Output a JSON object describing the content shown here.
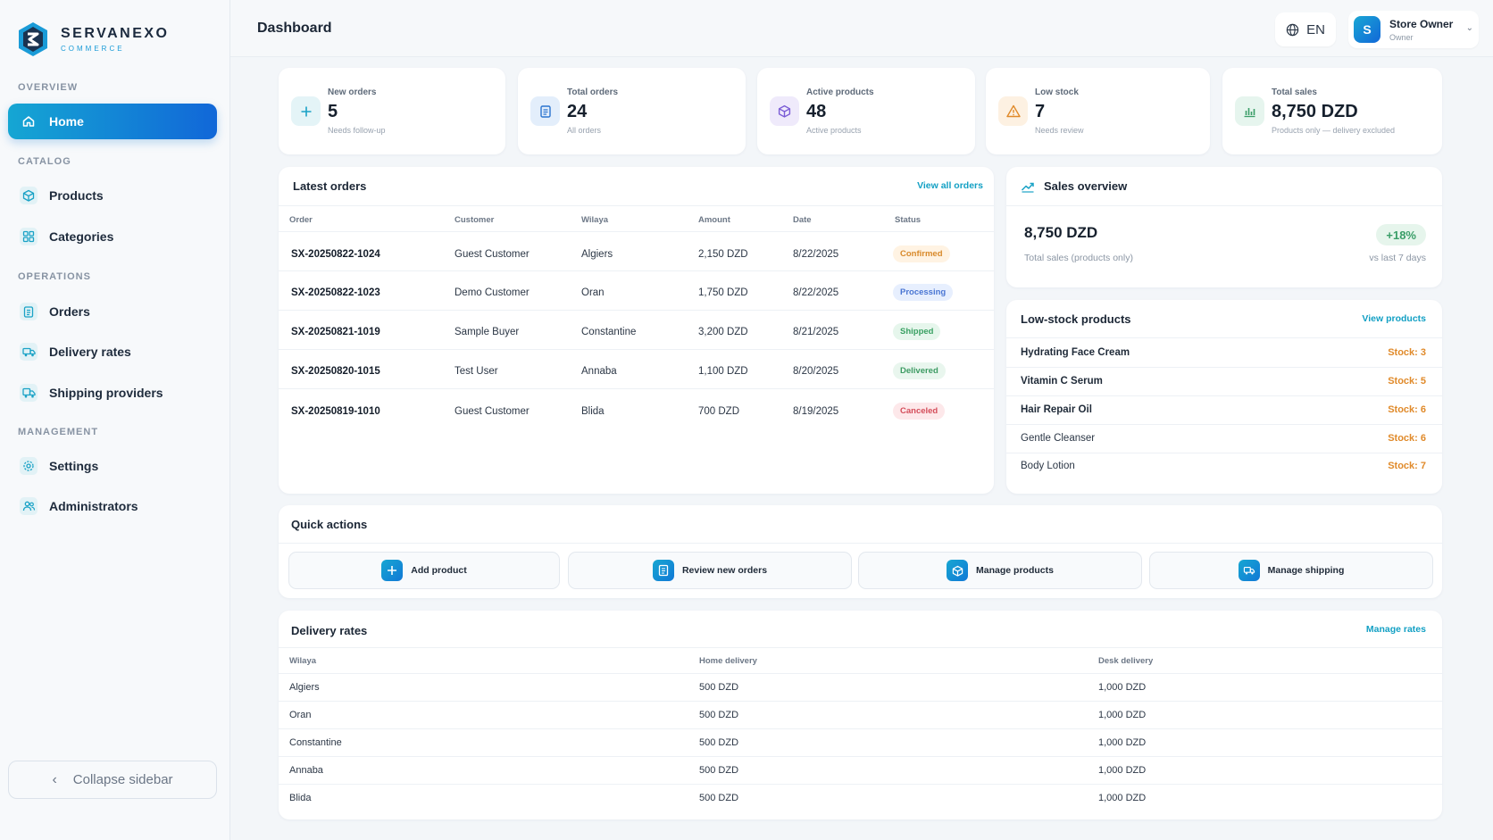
{
  "brand": {
    "name": "SERVANEXO",
    "sub": "COMMERCE"
  },
  "sidebar": {
    "sections": {
      "overview": "OVERVIEW",
      "catalog": "CATALOG",
      "operations": "OPERATIONS",
      "management": "MANAGEMENT"
    },
    "items": [
      {
        "label": "Home",
        "icon": "home-icon"
      },
      {
        "label": "Products",
        "icon": "box-icon"
      },
      {
        "label": "Categories",
        "icon": "grid-icon"
      },
      {
        "label": "Orders",
        "icon": "clipboard-icon"
      },
      {
        "label": "Delivery rates",
        "icon": "truck-icon"
      },
      {
        "label": "Shipping providers",
        "icon": "truck-box-icon"
      },
      {
        "label": "Settings",
        "icon": "gear-icon"
      },
      {
        "label": "Administrators",
        "icon": "users-icon"
      }
    ],
    "collapse_label": "Collapse sidebar"
  },
  "header": {
    "title": "Dashboard",
    "language": "EN",
    "user_name": "Store Owner",
    "user_role": "Owner",
    "avatar_letter": "S"
  },
  "stats": [
    {
      "label": "New orders",
      "value": "5",
      "sub": "Needs follow-up",
      "icon": "plus-icon"
    },
    {
      "label": "Total orders",
      "value": "24",
      "sub": "All orders",
      "icon": "clipboard-icon"
    },
    {
      "label": "Active products",
      "value": "48",
      "sub": "Active products",
      "icon": "cube-icon"
    },
    {
      "label": "Low stock",
      "value": "7",
      "sub": "Needs review",
      "icon": "warning-icon"
    },
    {
      "label": "Total sales",
      "value": "8,750 DZD",
      "sub": "Products only — delivery excluded",
      "icon": "bar-chart-icon"
    }
  ],
  "latest_orders": {
    "title": "Latest orders",
    "link": "View all orders",
    "columns": [
      "Order",
      "Customer",
      "Wilaya",
      "Amount",
      "Date",
      "Status"
    ],
    "rows": [
      {
        "order": "SX-20250822-1024",
        "customer": "Guest Customer",
        "wilaya": "Algiers",
        "amount": "2,150 DZD",
        "date": "8/22/2025",
        "status": "Confirmed"
      },
      {
        "order": "SX-20250822-1023",
        "customer": "Demo Customer",
        "wilaya": "Oran",
        "amount": "1,750 DZD",
        "date": "8/22/2025",
        "status": "Processing"
      },
      {
        "order": "SX-20250821-1019",
        "customer": "Sample Buyer",
        "wilaya": "Constantine",
        "amount": "3,200 DZD",
        "date": "8/21/2025",
        "status": "Shipped"
      },
      {
        "order": "SX-20250820-1015",
        "customer": "Test User",
        "wilaya": "Annaba",
        "amount": "1,100 DZD",
        "date": "8/20/2025",
        "status": "Delivered"
      },
      {
        "order": "SX-20250819-1010",
        "customer": "Guest Customer",
        "wilaya": "Blida",
        "amount": "700 DZD",
        "date": "8/19/2025",
        "status": "Canceled"
      }
    ]
  },
  "sales_overview": {
    "title": "Sales overview",
    "value": "8,750 DZD",
    "caption": "Total sales (products only)",
    "change": "+18%",
    "change_caption": "vs last 7 days"
  },
  "low_stock": {
    "title": "Low-stock products",
    "link": "View products",
    "items": [
      {
        "name": "Hydrating Face Cream",
        "stock": "Stock: 3"
      },
      {
        "name": "Vitamin C Serum",
        "stock": "Stock: 5"
      },
      {
        "name": "Hair Repair Oil",
        "stock": "Stock: 6"
      },
      {
        "name": "Gentle Cleanser",
        "stock": "Stock: 6"
      },
      {
        "name": "Body Lotion",
        "stock": "Stock: 7"
      }
    ]
  },
  "quick_actions": {
    "title": "Quick actions",
    "items": [
      {
        "label": "Add product",
        "icon": "plus-icon"
      },
      {
        "label": "Review new orders",
        "icon": "clipboard-icon"
      },
      {
        "label": "Manage products",
        "icon": "cube-icon"
      },
      {
        "label": "Manage shipping",
        "icon": "truck-icon"
      }
    ]
  },
  "delivery_rates": {
    "title": "Delivery rates",
    "link": "Manage rates",
    "columns": [
      "Wilaya",
      "Home delivery",
      "Desk delivery"
    ],
    "rows": [
      {
        "wilaya": "Algiers",
        "home": "500 DZD",
        "desk": "1,000 DZD"
      },
      {
        "wilaya": "Oran",
        "home": "500 DZD",
        "desk": "1,000 DZD"
      },
      {
        "wilaya": "Constantine",
        "home": "500 DZD",
        "desk": "1,000 DZD"
      },
      {
        "wilaya": "Annaba",
        "home": "500 DZD",
        "desk": "1,000 DZD"
      },
      {
        "wilaya": "Blida",
        "home": "500 DZD",
        "desk": "1,000 DZD"
      }
    ]
  },
  "colors": {
    "accent": "#13a0c4",
    "primary_gradient_start": "#15a6d3",
    "primary_gradient_end": "#1167d8",
    "warning": "#e08a2a",
    "success": "#39a062",
    "danger": "#d44d5a"
  }
}
